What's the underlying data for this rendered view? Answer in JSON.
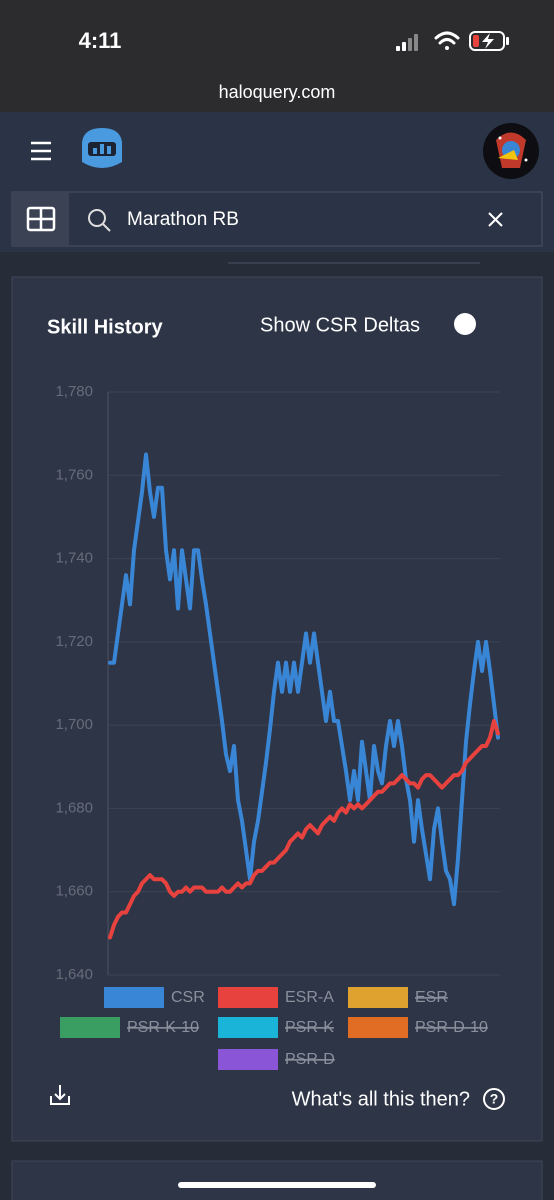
{
  "status_bar": {
    "time": "4:11"
  },
  "browser": {
    "url": "haloquery.com"
  },
  "search": {
    "query": "Marathon RB"
  },
  "card": {
    "title": "Skill History",
    "toggle_label": "Show CSR Deltas",
    "help_text": "What's all this then?"
  },
  "chart_data": {
    "type": "line",
    "ylim": [
      1640,
      1780
    ],
    "yticks": [
      {
        "value": 1640,
        "label": "1,640"
      },
      {
        "value": 1660,
        "label": "1,660"
      },
      {
        "value": 1680,
        "label": "1,680"
      },
      {
        "value": 1700,
        "label": "1,700"
      },
      {
        "value": 1720,
        "label": "1,720"
      },
      {
        "value": 1740,
        "label": "1,740"
      },
      {
        "value": 1760,
        "label": "1,760"
      },
      {
        "value": 1780,
        "label": "1,780"
      }
    ],
    "grid": true,
    "series": [
      {
        "name": "CSR",
        "color": "#3a86d6",
        "values": [
          1715,
          1715,
          1722,
          1729,
          1736,
          1729,
          1742,
          1749,
          1756,
          1765,
          1756,
          1750,
          1757,
          1757,
          1742,
          1735,
          1742,
          1728,
          1742,
          1735,
          1728,
          1742,
          1742,
          1735,
          1729,
          1722,
          1715,
          1708,
          1701,
          1693,
          1689,
          1695,
          1682,
          1677,
          1670,
          1663,
          1672,
          1677,
          1684,
          1691,
          1699,
          1708,
          1715,
          1708,
          1715,
          1708,
          1715,
          1708,
          1715,
          1722,
          1715,
          1722,
          1715,
          1708,
          1701,
          1708,
          1701,
          1701,
          1695,
          1689,
          1682,
          1689,
          1682,
          1696,
          1689,
          1682,
          1695,
          1689,
          1686,
          1695,
          1701,
          1695,
          1701,
          1695,
          1687,
          1682,
          1672,
          1682,
          1675,
          1669,
          1663,
          1675,
          1680,
          1672,
          1665,
          1663,
          1657,
          1668,
          1682,
          1696,
          1705,
          1713,
          1720,
          1713,
          1720,
          1713,
          1705,
          1697
        ]
      },
      {
        "name": "ESR-A",
        "color": "#e8423f",
        "values": [
          1649,
          1652,
          1654,
          1655,
          1655,
          1657,
          1659,
          1660,
          1662,
          1663,
          1664,
          1663,
          1663,
          1663,
          1662,
          1660,
          1659,
          1660,
          1660,
          1661,
          1660,
          1661,
          1661,
          1661,
          1660,
          1660,
          1660,
          1660,
          1661,
          1660,
          1660,
          1661,
          1662,
          1661,
          1662,
          1662,
          1664,
          1665,
          1665,
          1666,
          1667,
          1667,
          1668,
          1669,
          1670,
          1672,
          1673,
          1674,
          1673,
          1675,
          1676,
          1675,
          1674,
          1676,
          1677,
          1678,
          1677,
          1679,
          1680,
          1679,
          1681,
          1680,
          1681,
          1680,
          1681,
          1682,
          1683,
          1684,
          1684,
          1685,
          1686,
          1686,
          1687,
          1688,
          1687,
          1686,
          1686,
          1685,
          1687,
          1688,
          1688,
          1687,
          1686,
          1685,
          1686,
          1687,
          1688,
          1688,
          1689,
          1691,
          1692,
          1693,
          1694,
          1695,
          1695,
          1697,
          1701,
          1698
        ]
      },
      {
        "name": "ESR",
        "color": "#e0a22e",
        "hidden": true
      },
      {
        "name": "PSR-K-10",
        "color": "#3a9e62",
        "hidden": true
      },
      {
        "name": "PSR-K",
        "color": "#19b4d8",
        "hidden": true
      },
      {
        "name": "PSR-D-10",
        "color": "#e06d23",
        "hidden": true
      },
      {
        "name": "PSR-D",
        "color": "#8a55d6",
        "hidden": true
      }
    ]
  }
}
